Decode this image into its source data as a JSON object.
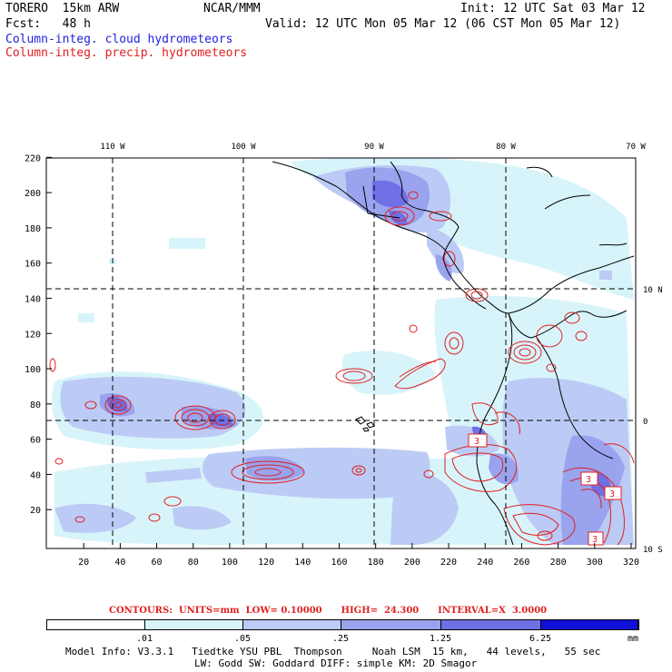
{
  "header": {
    "model": "TORERO  15km ARW",
    "org": "NCAR/MMM",
    "init": "Init: 12 UTC Sat 03 Mar 12",
    "fcst": "Fcst:   48 h",
    "valid": "Valid: 12 UTC Mon 05 Mar 12 (06 CST Mon 05 Mar 12)",
    "field1": "Column-integ. cloud hydrometeors",
    "field2": "Column-integ. precip. hydrometeors"
  },
  "colors": {
    "field1": "#1f1fe0",
    "field2": "#e02020",
    "contour": "#e02020",
    "fill_levels": [
      "#ffffff",
      "#d8f4fb",
      "#bccbf5",
      "#9aa3ee",
      "#6f6fe6",
      "#3a3ade",
      "#1010d8"
    ]
  },
  "map": {
    "lon_labels": [
      "110 W",
      "100 W",
      "90 W",
      "80 W",
      "70 W"
    ],
    "lat_labels": [
      "10 N",
      "0",
      "10 S"
    ],
    "x_ticks": [
      "20",
      "40",
      "60",
      "80",
      "100",
      "120",
      "140",
      "160",
      "180",
      "200",
      "220",
      "240",
      "260",
      "280",
      "300",
      "320"
    ],
    "y_ticks": [
      "20",
      "40",
      "60",
      "80",
      "100",
      "120",
      "140",
      "160",
      "180",
      "200",
      "220"
    ],
    "contour_box_label": "3"
  },
  "contour_info": "CONTOURS:  UNITS=mm  LOW= 0.10000      HIGH=  24.300      INTERVAL=X  3.0000",
  "legend": {
    "labels": [
      ".01",
      ".05",
      ".25",
      "1.25",
      "6.25"
    ],
    "units": "mm"
  },
  "model_info": {
    "line1": "Model Info: V3.3.1   Tiedtke YSU PBL  Thompson     Noah LSM  15 km,   44 levels,   55 sec",
    "line2": "LW: Godd SW: Goddard DIFF: simple KM: 2D Smagor"
  }
}
